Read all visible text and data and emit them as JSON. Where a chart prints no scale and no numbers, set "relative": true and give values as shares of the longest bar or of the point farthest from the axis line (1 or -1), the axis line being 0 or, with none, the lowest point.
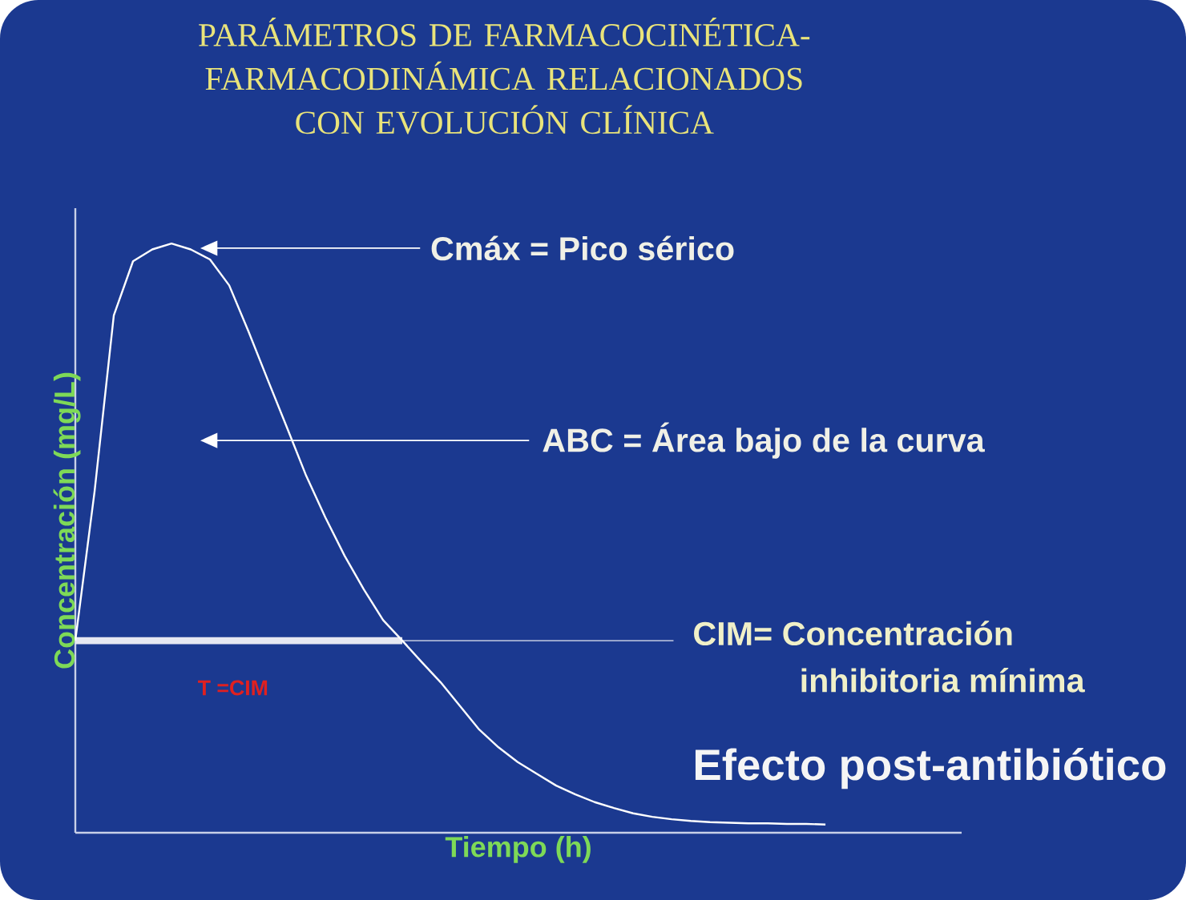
{
  "chart_data": {
    "type": "line",
    "title": "PARÁMETROS DE FARMACOCINÉTICA-FARMACODINÁMICA RELACIONADOS CON EVOLUCIÓN CLÍNICA",
    "xlabel": "Tiempo (h)",
    "ylabel": "Concentración (mg/L)",
    "categories": [
      null,
      null,
      null,
      null,
      null,
      null,
      null,
      null,
      null,
      null,
      null,
      null,
      null,
      null,
      null,
      null,
      null,
      null,
      null,
      null,
      null,
      null,
      null,
      null,
      null,
      null,
      null,
      null,
      null,
      null,
      null,
      null,
      null,
      null,
      null,
      null,
      null,
      null,
      null,
      null
    ],
    "values": [
      0.326,
      0.579,
      0.878,
      0.97,
      0.99,
      1,
      0.99,
      0.973,
      0.929,
      0.851,
      0.769,
      0.688,
      0.606,
      0.535,
      0.47,
      0.413,
      0.361,
      0.326,
      0.29,
      0.255,
      0.215,
      0.175,
      0.145,
      0.12,
      0.1,
      0.08,
      0.065,
      0.052,
      0.042,
      0.033,
      0.027,
      0.023,
      0.02,
      0.018,
      0.017,
      0.016,
      0.016,
      0.015,
      0.015,
      0.014
    ],
    "color": "#ffffff",
    "relative": true,
    "ref_lines": [
      {
        "axis": "y",
        "value": 0.326,
        "label": "T =CIM",
        "color": "#e6e8f2"
      }
    ],
    "annotations": [
      "Cmáx = Pico sérico",
      "ABC = Área  bajo de la curva",
      "CIM= Concentración inhibitoria mínima",
      "Efecto post-antibiótico"
    ]
  }
}
